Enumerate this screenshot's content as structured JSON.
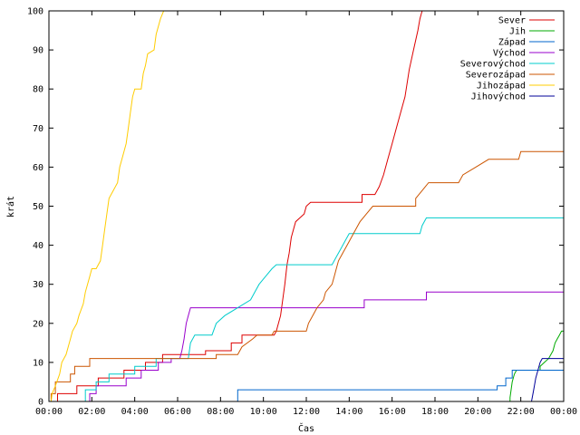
{
  "chart_data": {
    "type": "line",
    "xlabel": "Čas",
    "ylabel": "krát",
    "xlim": [
      0,
      24
    ],
    "ylim": [
      0,
      100
    ],
    "x_ticks": [
      {
        "value": 0,
        "label": "00:00"
      },
      {
        "value": 2,
        "label": "02:00"
      },
      {
        "value": 4,
        "label": "04:00"
      },
      {
        "value": 6,
        "label": "06:00"
      },
      {
        "value": 8,
        "label": "08:00"
      },
      {
        "value": 10,
        "label": "10:00"
      },
      {
        "value": 12,
        "label": "12:00"
      },
      {
        "value": 14,
        "label": "14:00"
      },
      {
        "value": 16,
        "label": "16:00"
      },
      {
        "value": 18,
        "label": "18:00"
      },
      {
        "value": 20,
        "label": "20:00"
      },
      {
        "value": 22,
        "label": "22:00"
      },
      {
        "value": 24,
        "label": "00:00"
      }
    ],
    "y_ticks": [
      0,
      10,
      20,
      30,
      40,
      50,
      60,
      70,
      80,
      90,
      100
    ],
    "grid": false,
    "legend_position": "top-right",
    "series": [
      {
        "name": "Sever",
        "color": "#dd0000",
        "points": [
          [
            0.4,
            0
          ],
          [
            0.4,
            2
          ],
          [
            1.3,
            2
          ],
          [
            1.3,
            4
          ],
          [
            2.3,
            4
          ],
          [
            2.3,
            6
          ],
          [
            3.5,
            6
          ],
          [
            3.5,
            8
          ],
          [
            4.5,
            8
          ],
          [
            4.5,
            10
          ],
          [
            5.3,
            10
          ],
          [
            5.3,
            12
          ],
          [
            7.3,
            12
          ],
          [
            7.3,
            13
          ],
          [
            8.5,
            13
          ],
          [
            8.5,
            15
          ],
          [
            9,
            15
          ],
          [
            9,
            17
          ],
          [
            10.5,
            17
          ],
          [
            10.6,
            18
          ],
          [
            10.8,
            22
          ],
          [
            11,
            30
          ],
          [
            11.1,
            35
          ],
          [
            11.2,
            38
          ],
          [
            11.3,
            42
          ],
          [
            11.5,
            46
          ],
          [
            11.7,
            47
          ],
          [
            11.9,
            48
          ],
          [
            12,
            50
          ],
          [
            12.2,
            51
          ],
          [
            14.6,
            51
          ],
          [
            14.6,
            53
          ],
          [
            15.2,
            53
          ],
          [
            15.4,
            55
          ],
          [
            15.6,
            58
          ],
          [
            15.8,
            62
          ],
          [
            16,
            66
          ],
          [
            16.2,
            70
          ],
          [
            16.4,
            74
          ],
          [
            16.6,
            78
          ],
          [
            16.8,
            85
          ],
          [
            17,
            90
          ],
          [
            17.2,
            95
          ],
          [
            17.3,
            98
          ],
          [
            17.4,
            100
          ]
        ]
      },
      {
        "name": "Jih",
        "color": "#00aa00",
        "points": [
          [
            21.5,
            0
          ],
          [
            21.5,
            1
          ],
          [
            21.6,
            5
          ],
          [
            21.7,
            7
          ],
          [
            21.8,
            8
          ],
          [
            22.9,
            8
          ],
          [
            22.9,
            9
          ],
          [
            23.1,
            10
          ],
          [
            23.3,
            11
          ],
          [
            23.5,
            13
          ],
          [
            23.6,
            15
          ],
          [
            23.7,
            16
          ],
          [
            23.8,
            17
          ],
          [
            23.9,
            18
          ],
          [
            24,
            18
          ]
        ]
      },
      {
        "name": "Západ",
        "color": "#0066cc",
        "points": [
          [
            8.8,
            0
          ],
          [
            8.8,
            3
          ],
          [
            20.9,
            3
          ],
          [
            20.9,
            4
          ],
          [
            21.3,
            4
          ],
          [
            21.3,
            6
          ],
          [
            21.6,
            6
          ],
          [
            21.6,
            8
          ],
          [
            24,
            8
          ]
        ]
      },
      {
        "name": "Východ",
        "color": "#9900cc",
        "points": [
          [
            1.9,
            0
          ],
          [
            1.9,
            2
          ],
          [
            2.2,
            2
          ],
          [
            2.2,
            4
          ],
          [
            3.6,
            4
          ],
          [
            3.6,
            6
          ],
          [
            4.3,
            6
          ],
          [
            4.3,
            8
          ],
          [
            5.1,
            8
          ],
          [
            5.1,
            10
          ],
          [
            5.7,
            10
          ],
          [
            5.7,
            11
          ],
          [
            6.1,
            11
          ],
          [
            6.2,
            13
          ],
          [
            6.3,
            16
          ],
          [
            6.4,
            20
          ],
          [
            6.5,
            22
          ],
          [
            6.6,
            24
          ],
          [
            14.7,
            24
          ],
          [
            14.7,
            26
          ],
          [
            17.6,
            26
          ],
          [
            17.6,
            28
          ],
          [
            24,
            28
          ]
        ]
      },
      {
        "name": "Severovýchod",
        "color": "#00cccc",
        "points": [
          [
            1.7,
            0
          ],
          [
            1.7,
            3
          ],
          [
            2.2,
            3
          ],
          [
            2.2,
            5
          ],
          [
            2.8,
            5
          ],
          [
            2.8,
            7
          ],
          [
            4,
            7
          ],
          [
            4,
            9
          ],
          [
            5,
            9
          ],
          [
            5,
            11
          ],
          [
            6.5,
            11
          ],
          [
            6.6,
            15
          ],
          [
            6.8,
            17
          ],
          [
            7.6,
            17
          ],
          [
            7.8,
            20
          ],
          [
            8.2,
            22
          ],
          [
            8.8,
            24
          ],
          [
            9.4,
            26
          ],
          [
            9.6,
            28
          ],
          [
            9.8,
            30
          ],
          [
            10.1,
            32
          ],
          [
            10.4,
            34
          ],
          [
            10.6,
            35
          ],
          [
            13.2,
            35
          ],
          [
            13.4,
            37
          ],
          [
            13.6,
            39
          ],
          [
            13.8,
            41
          ],
          [
            14,
            43
          ],
          [
            17.3,
            43
          ],
          [
            17.4,
            45
          ],
          [
            17.6,
            47
          ],
          [
            24,
            47
          ]
        ]
      },
      {
        "name": "Severozápad",
        "color": "#cc5500",
        "points": [
          [
            0.1,
            0
          ],
          [
            0.1,
            2
          ],
          [
            0.3,
            2
          ],
          [
            0.3,
            5
          ],
          [
            1,
            5
          ],
          [
            1,
            7
          ],
          [
            1.2,
            7
          ],
          [
            1.2,
            9
          ],
          [
            1.9,
            9
          ],
          [
            1.9,
            11
          ],
          [
            7.8,
            11
          ],
          [
            7.8,
            12
          ],
          [
            8.8,
            12
          ],
          [
            9,
            14
          ],
          [
            9.5,
            16
          ],
          [
            9.7,
            17
          ],
          [
            10.4,
            17
          ],
          [
            10.5,
            18
          ],
          [
            12,
            18
          ],
          [
            12.1,
            20
          ],
          [
            12.3,
            22
          ],
          [
            12.5,
            24
          ],
          [
            12.8,
            26
          ],
          [
            12.9,
            28
          ],
          [
            13.2,
            30
          ],
          [
            13.3,
            32
          ],
          [
            13.4,
            34
          ],
          [
            13.5,
            36
          ],
          [
            13.7,
            38
          ],
          [
            13.9,
            40
          ],
          [
            14.1,
            42
          ],
          [
            14.3,
            44
          ],
          [
            14.5,
            46
          ],
          [
            14.8,
            48
          ],
          [
            15.1,
            50
          ],
          [
            17.1,
            50
          ],
          [
            17.1,
            52
          ],
          [
            17.4,
            54
          ],
          [
            17.7,
            56
          ],
          [
            19.1,
            56
          ],
          [
            19.3,
            58
          ],
          [
            19.9,
            60
          ],
          [
            20.5,
            62
          ],
          [
            21.9,
            62
          ],
          [
            22,
            64
          ],
          [
            24,
            64
          ]
        ]
      },
      {
        "name": "Jihozápad",
        "color": "#ffcc00",
        "points": [
          [
            0.1,
            0
          ],
          [
            0.15,
            2
          ],
          [
            0.3,
            4
          ],
          [
            0.5,
            7
          ],
          [
            0.6,
            10
          ],
          [
            0.8,
            12
          ],
          [
            1,
            16
          ],
          [
            1.1,
            18
          ],
          [
            1.3,
            20
          ],
          [
            1.4,
            22
          ],
          [
            1.6,
            25
          ],
          [
            1.7,
            28
          ],
          [
            1.8,
            30
          ],
          [
            1.9,
            32
          ],
          [
            2,
            34
          ],
          [
            2.2,
            34
          ],
          [
            2.4,
            36
          ],
          [
            2.5,
            40
          ],
          [
            2.6,
            44
          ],
          [
            2.7,
            48
          ],
          [
            2.8,
            52
          ],
          [
            3,
            54
          ],
          [
            3.2,
            56
          ],
          [
            3.3,
            60
          ],
          [
            3.4,
            62
          ],
          [
            3.6,
            66
          ],
          [
            3.7,
            70
          ],
          [
            3.8,
            74
          ],
          [
            3.9,
            78
          ],
          [
            4,
            80
          ],
          [
            4.3,
            80
          ],
          [
            4.4,
            84
          ],
          [
            4.5,
            86
          ],
          [
            4.6,
            89
          ],
          [
            4.9,
            90
          ],
          [
            5,
            94
          ],
          [
            5.1,
            96
          ],
          [
            5.2,
            98
          ],
          [
            5.35,
            100
          ]
        ]
      },
      {
        "name": "Jihovýchod",
        "color": "#000099",
        "points": [
          [
            22.5,
            0
          ],
          [
            22.6,
            3
          ],
          [
            22.7,
            6
          ],
          [
            22.8,
            8
          ],
          [
            22.9,
            10
          ],
          [
            23,
            11
          ],
          [
            24,
            11
          ]
        ]
      }
    ]
  }
}
